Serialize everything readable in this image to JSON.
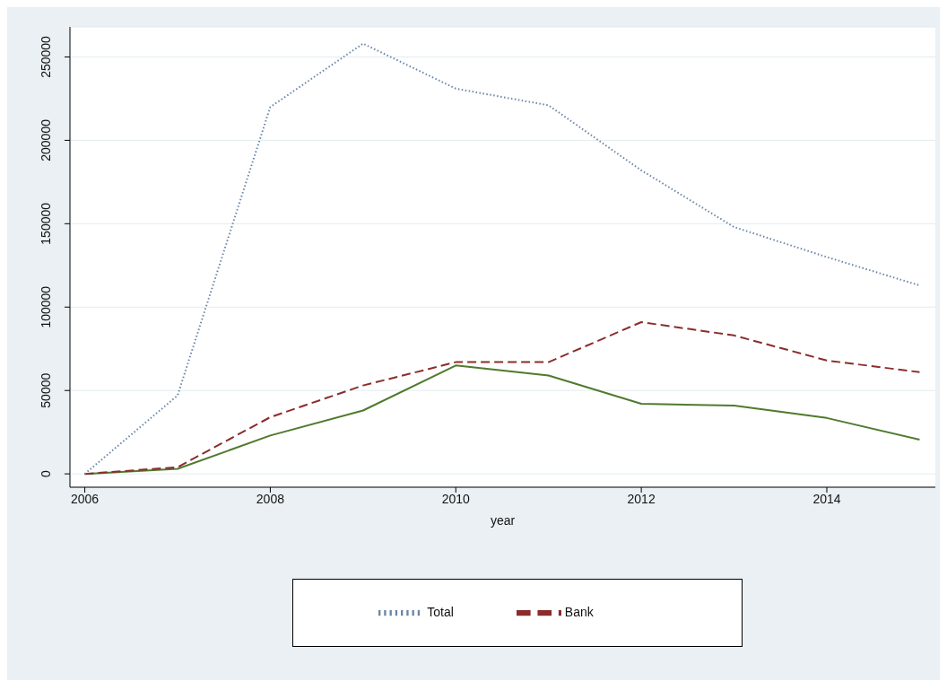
{
  "chart_data": {
    "type": "line",
    "xlabel": "year",
    "x": [
      2006,
      2007,
      2008,
      2009,
      2010,
      2011,
      2012,
      2013,
      2014,
      2015
    ],
    "series": [
      {
        "name": "Total",
        "color": "#6a86a8",
        "line_style": "dotted",
        "values": [
          0,
          47000,
          220000,
          258000,
          231000,
          221000,
          182000,
          148000,
          130000,
          113000
        ]
      },
      {
        "name": "Bank",
        "color": "#8b2c2c",
        "line_style": "dashed",
        "values": [
          0,
          4000,
          34000,
          53000,
          67000,
          67000,
          91000,
          83000,
          68000,
          61000
        ]
      },
      {
        "color": "#4f7a2e",
        "line_style": "solid",
        "values": [
          0,
          3000,
          23000,
          38000,
          65000,
          59000,
          42000,
          41000,
          33500,
          20500
        ]
      }
    ],
    "xlim": [
      2005.84,
      2015.17
    ],
    "xticks": [
      2006,
      2008,
      2010,
      2012,
      2014
    ],
    "ylim": [
      -8000,
      268000
    ],
    "yticks": [
      0,
      50000,
      100000,
      150000,
      200000,
      250000
    ],
    "grid": "y",
    "legend": "bottom",
    "marker": "none"
  }
}
